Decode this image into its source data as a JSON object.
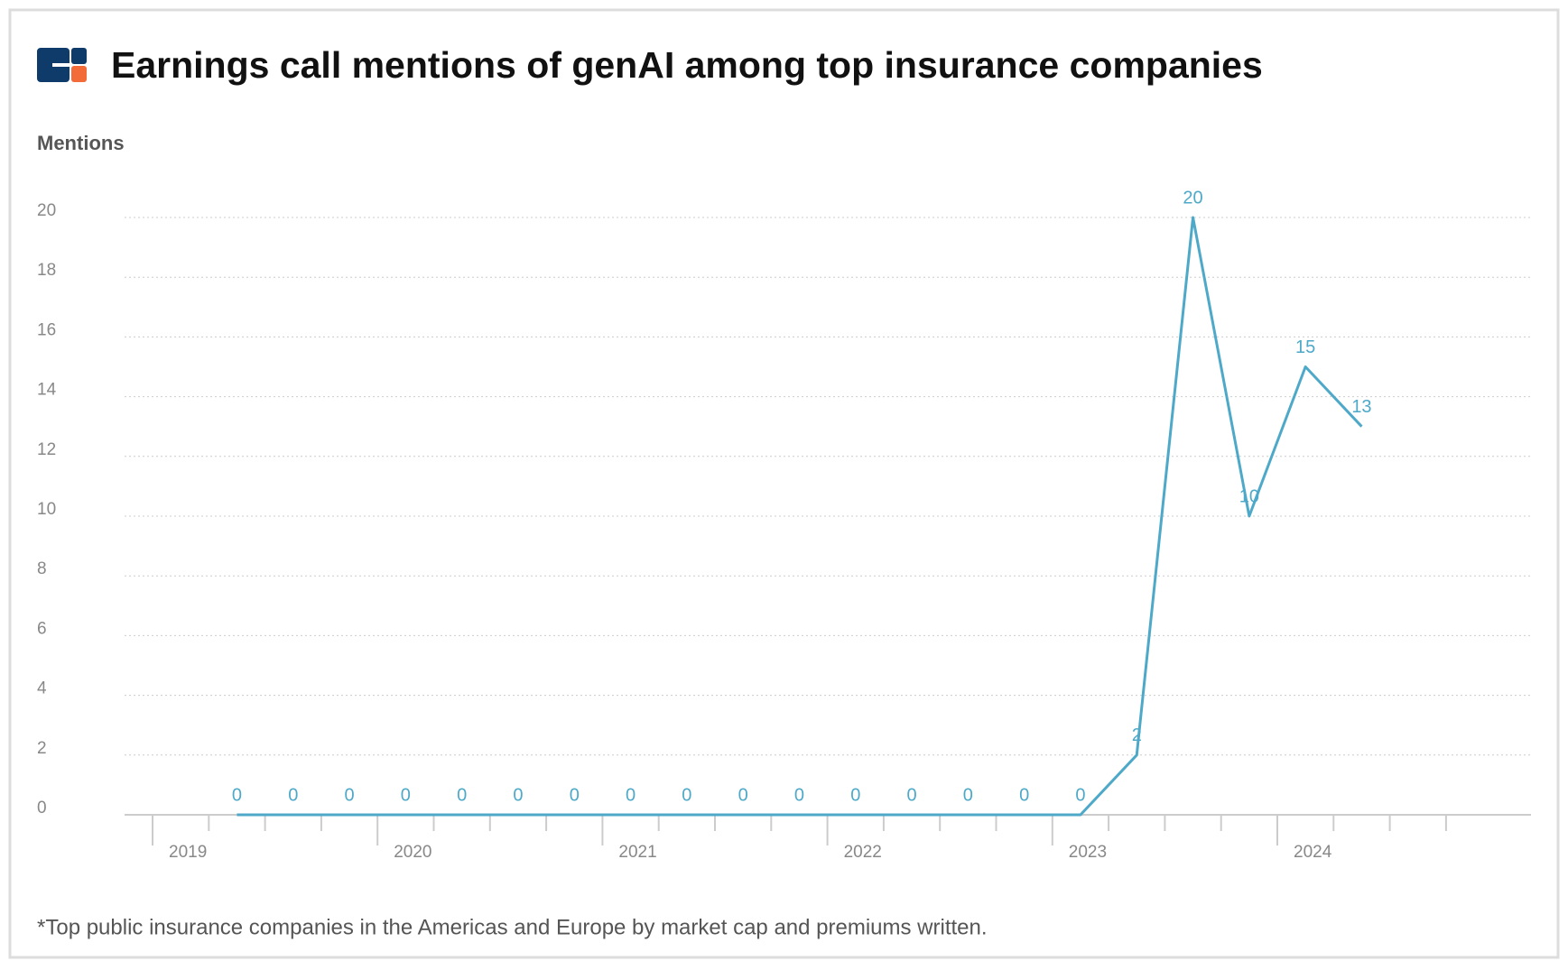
{
  "chart_data": {
    "type": "line",
    "title": "Earnings call mentions of genAI among top insurance companies",
    "y_label": "Mentions",
    "footnote": "*Top public insurance companies in the Americas and Europe by market cap and premiums written.",
    "categories": [
      "2019",
      null,
      null,
      null,
      "2020",
      null,
      null,
      null,
      "2021",
      null,
      null,
      null,
      "2022",
      null,
      null,
      null,
      "2023",
      null,
      null,
      null,
      "2024",
      null,
      null,
      null
    ],
    "values": [
      null,
      0,
      0,
      0,
      0,
      0,
      0,
      0,
      0,
      0,
      0,
      0,
      0,
      0,
      0,
      0,
      0,
      2,
      20,
      10,
      15,
      13,
      null,
      null
    ],
    "color": "#4ea9c9",
    "ylim": [
      0,
      20
    ],
    "yticks": [
      0,
      2,
      4,
      6,
      8,
      10,
      12,
      14,
      16,
      18,
      20
    ],
    "grid": true
  }
}
